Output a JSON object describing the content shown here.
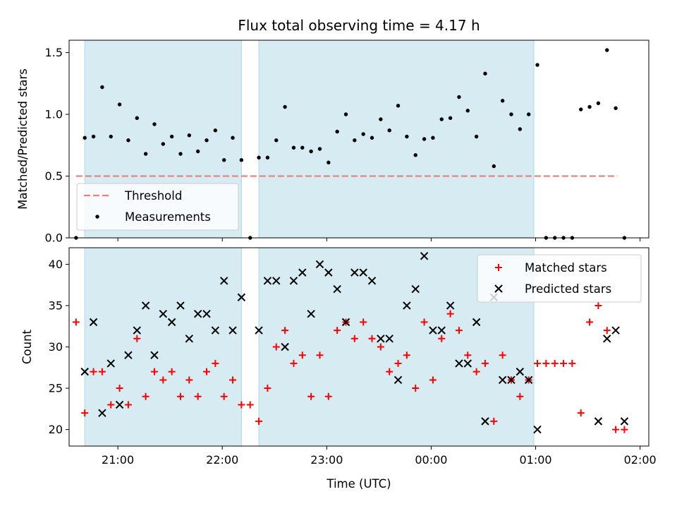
{
  "chart_data": [
    {
      "type": "scatter",
      "title": "Flux total observing time = 4.17 h",
      "xlabel": "",
      "ylabel": "Matched/Predicted stars",
      "ylim": [
        0,
        1.6
      ],
      "yticks": [
        "0.0",
        "0.5",
        "1.0",
        "1.5"
      ],
      "xlim": [
        "20:32",
        "02:05"
      ],
      "xticks": [
        "21:00",
        "22:00",
        "23:00",
        "00:00",
        "01:00",
        "02:00"
      ],
      "grid": false,
      "legend_position": "lower-left",
      "shaded_intervals": [
        [
          "20:41",
          "22:11"
        ],
        [
          "22:21",
          "00:59"
        ]
      ],
      "shade_color": "#add8e6",
      "threshold": {
        "name": "Threshold",
        "value": 0.5,
        "x_range": [
          "20:36",
          "01:47"
        ],
        "color": "#f08080"
      },
      "series": [
        {
          "name": "Measurements",
          "color": "#000000",
          "marker": "dot",
          "x": [
            "20:36",
            "20:41",
            "20:46",
            "20:51",
            "20:56",
            "21:01",
            "21:06",
            "21:11",
            "21:16",
            "21:21",
            "21:26",
            "21:31",
            "21:36",
            "21:41",
            "21:46",
            "21:51",
            "21:56",
            "22:01",
            "22:06",
            "22:11",
            "22:16",
            "22:21",
            "22:26",
            "22:31",
            "22:36",
            "22:41",
            "22:46",
            "22:51",
            "22:56",
            "23:01",
            "23:06",
            "23:11",
            "23:16",
            "23:21",
            "23:26",
            "23:31",
            "23:36",
            "23:41",
            "23:46",
            "23:51",
            "23:56",
            "00:01",
            "00:06",
            "00:11",
            "00:16",
            "00:21",
            "00:26",
            "00:31",
            "00:36",
            "00:41",
            "00:46",
            "00:51",
            "00:56",
            "01:01",
            "01:06",
            "01:11",
            "01:16",
            "01:21",
            "01:26",
            "01:31",
            "01:36",
            "01:41",
            "01:46",
            "01:51"
          ],
          "y": [
            0.0,
            0.81,
            0.82,
            1.22,
            0.82,
            1.08,
            0.79,
            0.97,
            0.68,
            0.92,
            0.76,
            0.82,
            0.68,
            0.83,
            0.7,
            0.79,
            0.87,
            0.63,
            0.81,
            0.63,
            0.0,
            0.65,
            0.65,
            0.79,
            1.06,
            0.73,
            0.73,
            0.7,
            0.72,
            0.61,
            0.86,
            1.0,
            0.79,
            0.84,
            0.81,
            0.96,
            0.87,
            1.07,
            0.82,
            0.67,
            0.8,
            0.81,
            0.96,
            0.97,
            1.14,
            1.03,
            0.82,
            1.33,
            0.58,
            1.11,
            1.0,
            0.88,
            1.0,
            1.4,
            0.0,
            0.0,
            0.0,
            0.0,
            1.04,
            1.06,
            1.09,
            1.52,
            1.05,
            0.0
          ]
        }
      ]
    },
    {
      "type": "scatter",
      "title": "",
      "xlabel": "Time (UTC)",
      "ylabel": "Count",
      "ylim": [
        18,
        42
      ],
      "yticks": [
        "20",
        "25",
        "30",
        "35",
        "40"
      ],
      "xlim": [
        "20:32",
        "02:05"
      ],
      "xticks": [
        "21:00",
        "22:00",
        "23:00",
        "00:00",
        "01:00",
        "02:00"
      ],
      "grid": false,
      "legend_position": "top-right",
      "shaded_intervals": [
        [
          "20:41",
          "22:11"
        ],
        [
          "22:21",
          "00:59"
        ]
      ],
      "shade_color": "#add8e6",
      "series": [
        {
          "name": "Matched stars",
          "color": "#ff0000",
          "marker": "plus",
          "x": [
            "20:36",
            "20:41",
            "20:46",
            "20:51",
            "20:56",
            "21:01",
            "21:06",
            "21:11",
            "21:16",
            "21:21",
            "21:26",
            "21:31",
            "21:36",
            "21:41",
            "21:46",
            "21:51",
            "21:56",
            "22:01",
            "22:06",
            "22:11",
            "22:16",
            "22:21",
            "22:26",
            "22:31",
            "22:36",
            "22:41",
            "22:46",
            "22:51",
            "22:56",
            "23:01",
            "23:06",
            "23:11",
            "23:16",
            "23:21",
            "23:26",
            "23:31",
            "23:36",
            "23:41",
            "23:46",
            "23:51",
            "23:56",
            "00:01",
            "00:06",
            "00:11",
            "00:16",
            "00:21",
            "00:26",
            "00:31",
            "00:36",
            "00:41",
            "00:46",
            "00:51",
            "00:56",
            "01:01",
            "01:06",
            "01:11",
            "01:16",
            "01:21",
            "01:26",
            "01:31",
            "01:36",
            "01:41",
            "01:46",
            "01:51"
          ],
          "y": [
            33,
            22,
            27,
            27,
            23,
            25,
            23,
            31,
            24,
            27,
            26,
            27,
            24,
            26,
            24,
            27,
            28,
            24,
            26,
            23,
            23,
            21,
            25,
            30,
            32,
            28,
            29,
            24,
            29,
            24,
            32,
            33,
            31,
            33,
            31,
            30,
            27,
            28,
            29,
            25,
            33,
            26,
            31,
            34,
            32,
            29,
            27,
            28,
            21,
            29,
            26,
            24,
            26,
            28,
            28,
            28,
            28,
            28,
            22,
            33,
            35,
            32,
            20,
            20
          ]
        },
        {
          "name": "Predicted stars",
          "color": "#000000",
          "marker": "x",
          "x": [
            "20:41",
            "20:46",
            "20:51",
            "20:56",
            "21:01",
            "21:06",
            "21:11",
            "21:16",
            "21:21",
            "21:26",
            "21:31",
            "21:36",
            "21:41",
            "21:46",
            "21:51",
            "21:56",
            "22:01",
            "22:06",
            "22:11",
            "22:21",
            "22:26",
            "22:31",
            "22:36",
            "22:41",
            "22:46",
            "22:51",
            "22:56",
            "23:01",
            "23:06",
            "23:11",
            "23:16",
            "23:21",
            "23:26",
            "23:31",
            "23:36",
            "23:41",
            "23:46",
            "23:51",
            "23:56",
            "00:01",
            "00:06",
            "00:11",
            "00:16",
            "00:21",
            "00:26",
            "00:31",
            "00:36",
            "00:41",
            "00:46",
            "00:51",
            "00:56",
            "01:01",
            "01:36",
            "01:41",
            "01:46",
            "01:51"
          ],
          "y": [
            27,
            33,
            22,
            28,
            23,
            29,
            32,
            35,
            29,
            34,
            33,
            35,
            31,
            34,
            34,
            32,
            38,
            32,
            36,
            32,
            38,
            38,
            30,
            38,
            39,
            34,
            40,
            39,
            37,
            33,
            39,
            39,
            38,
            31,
            31,
            26,
            35,
            37,
            41,
            32,
            32,
            35,
            28,
            28,
            33,
            21,
            36,
            26,
            26,
            27,
            26,
            20,
            21,
            31,
            32,
            21
          ]
        }
      ]
    }
  ]
}
